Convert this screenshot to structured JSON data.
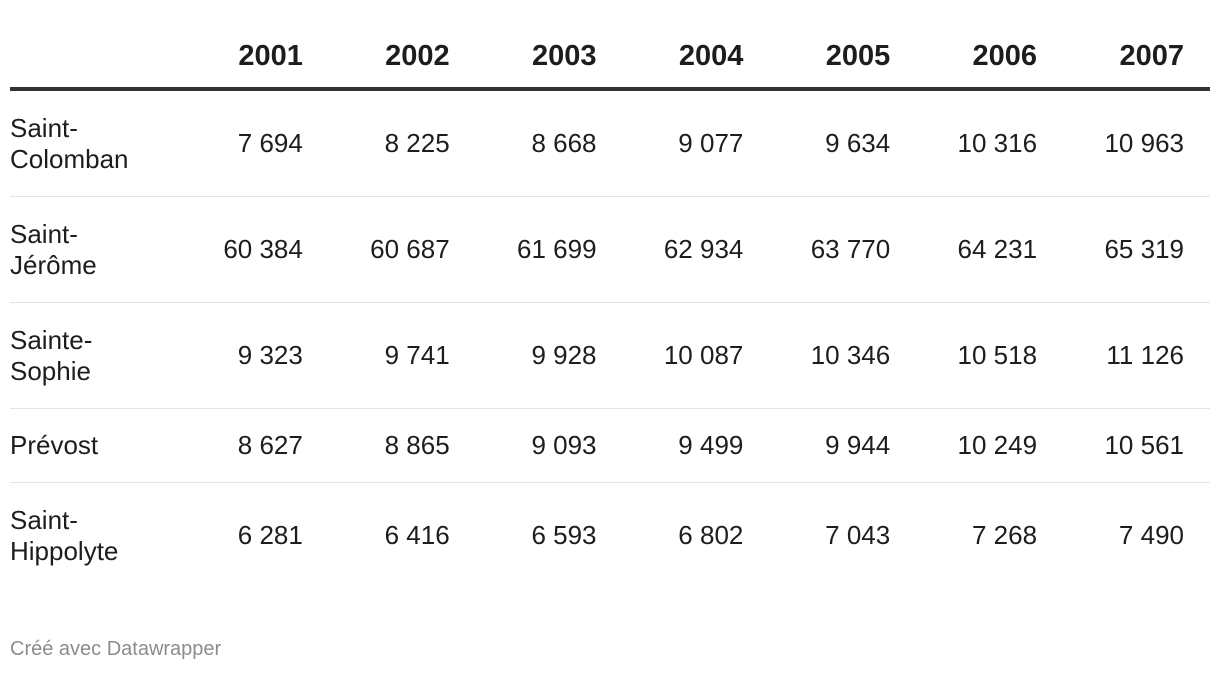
{
  "chart_data": {
    "type": "table",
    "columns": [
      "",
      "2001",
      "2002",
      "2003",
      "2004",
      "2005",
      "2006",
      "2007"
    ],
    "rows": [
      {
        "label": "Saint-\nColomban",
        "values": [
          "7 694",
          "8 225",
          "8 668",
          "9 077",
          "9 634",
          "10 316",
          "10 963"
        ]
      },
      {
        "label": "Saint-\nJérôme",
        "values": [
          "60 384",
          "60 687",
          "61 699",
          "62 934",
          "63 770",
          "64 231",
          "65 319"
        ]
      },
      {
        "label": "Sainte-\nSophie",
        "values": [
          "9 323",
          "9 741",
          "9 928",
          "10 087",
          "10 346",
          "10 518",
          "11 126"
        ]
      },
      {
        "label": "Prévost",
        "values": [
          "8 627",
          "8 865",
          "9 093",
          "9 499",
          "9 944",
          "10 249",
          "10 561"
        ]
      },
      {
        "label": "Saint-\nHippolyte",
        "values": [
          "6 281",
          "6 416",
          "6 593",
          "6 802",
          "7 043",
          "7 268",
          "7 490"
        ]
      }
    ]
  },
  "footer": {
    "credit": "Créé avec Datawrapper"
  }
}
